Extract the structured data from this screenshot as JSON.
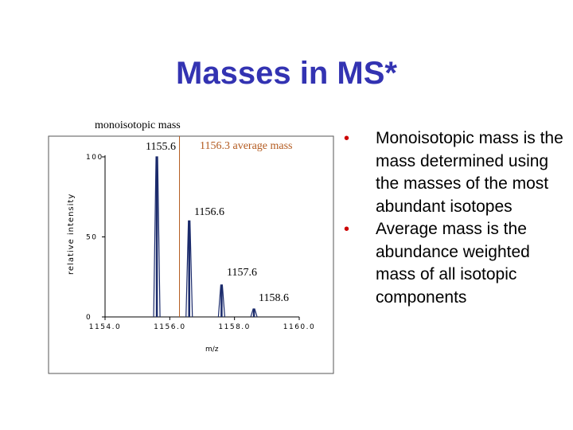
{
  "slide": {
    "title": "Masses in MS*",
    "bullets": [
      "Monoisotopic mass is the mass determined using the masses of the most abundant isotopes",
      "Average mass is the abundance weighted mass of all isotopic components"
    ],
    "bullet_color": "#cc0000",
    "title_color": "#3333b2"
  },
  "chart_data": {
    "type": "line",
    "xlabel": "m/z",
    "ylabel": "relative intensity",
    "xlim": [
      1154.0,
      1160.0
    ],
    "ylim": [
      0,
      100
    ],
    "x_ticks": [
      "1154.0",
      "1156.0",
      "1158.0",
      "1160.0"
    ],
    "y_ticks": [
      "0",
      "50",
      "100"
    ],
    "grid": false,
    "peaks": [
      {
        "x": 1155.6,
        "y": 100,
        "label": "1155.6"
      },
      {
        "x": 1156.6,
        "y": 60,
        "label": "1156.6"
      },
      {
        "x": 1157.6,
        "y": 20,
        "label": "1157.6"
      },
      {
        "x": 1158.6,
        "y": 5,
        "label": "1158.6"
      }
    ],
    "annotations": {
      "monoisotopic_label": "monoisotopic mass",
      "average_line_x": 1156.3,
      "average_label": "1156.3 average mass",
      "average_color": "#b35a1f"
    }
  }
}
